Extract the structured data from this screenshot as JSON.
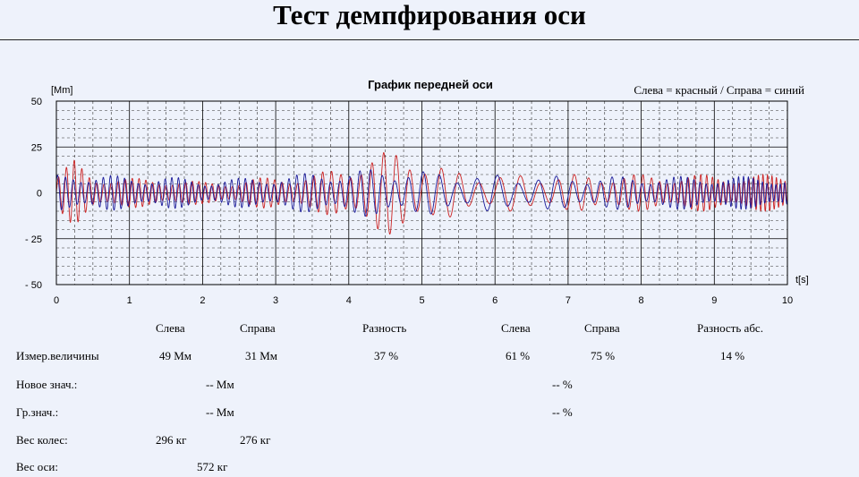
{
  "page": {
    "title": "Тест демпфирования оси"
  },
  "chart_data": {
    "type": "line",
    "title": "График передней оси",
    "legend": "Слева = красный / Справа = синий",
    "y_unit": "[Mm]",
    "x_unit": "t[s]",
    "xlim": [
      0,
      10
    ],
    "ylim": [
      -50,
      50
    ],
    "x_ticks": [
      "0",
      "1",
      "2",
      "3",
      "4",
      "5",
      "6",
      "7",
      "8",
      "9",
      "10"
    ],
    "y_ticks": [
      "50",
      "25",
      "0",
      "- 25",
      "- 50"
    ],
    "grid": true,
    "series": [
      {
        "color": "#cc2222",
        "x": [
          0,
          0.25,
          0.5,
          1.0,
          1.5,
          2.0,
          2.5,
          3.0,
          3.5,
          4.0,
          4.3,
          4.6,
          4.8,
          5.0,
          5.3,
          5.6,
          6.0,
          7.0,
          8.0,
          9.0,
          10.0
        ],
        "amplitude": [
          10,
          18,
          10,
          8,
          8,
          6,
          7,
          9,
          10,
          15,
          21,
          23,
          22,
          19,
          14,
          11,
          10,
          10,
          10,
          10,
          10
        ]
      },
      {
        "color": "#1a1a99",
        "x": [
          0,
          0.25,
          0.5,
          1.0,
          1.5,
          2.0,
          2.5,
          3.0,
          3.5,
          4.0,
          4.3,
          4.6,
          4.8,
          5.0,
          5.3,
          5.6,
          6.0,
          7.0,
          8.0,
          9.0,
          10.0
        ],
        "amplitude": [
          10,
          12,
          10,
          9,
          9,
          7,
          8,
          9,
          11,
          12,
          13,
          13,
          13,
          12,
          11,
          10,
          10,
          9,
          9,
          9,
          9
        ]
      }
    ]
  },
  "results": {
    "headers": {
      "left": "Слева",
      "right": "Справа",
      "diff": "Разность",
      "left2": "Слева",
      "right2": "Справа",
      "diff_abs": "Разность абс."
    },
    "rows": {
      "measured": {
        "label": "Измер.величины",
        "left": "49 Мм",
        "right": "31 Мм",
        "diff": "37 %",
        "left2": "61 %",
        "right2": "75 %",
        "diff_abs": "14 %"
      },
      "new_value": {
        "label": "Новое знач.:",
        "value_mm": "-- Мм",
        "value_pct": "-- %"
      },
      "limit": {
        "label": "Гр.знач.:",
        "value_mm": "-- Мм",
        "value_pct": "-- %"
      },
      "wheel_weight": {
        "label": "Вес колес:",
        "left": "296  кг",
        "right": "276  кг"
      },
      "axle_weight": {
        "label": "Вес оси:",
        "value": "572 кг"
      }
    }
  }
}
